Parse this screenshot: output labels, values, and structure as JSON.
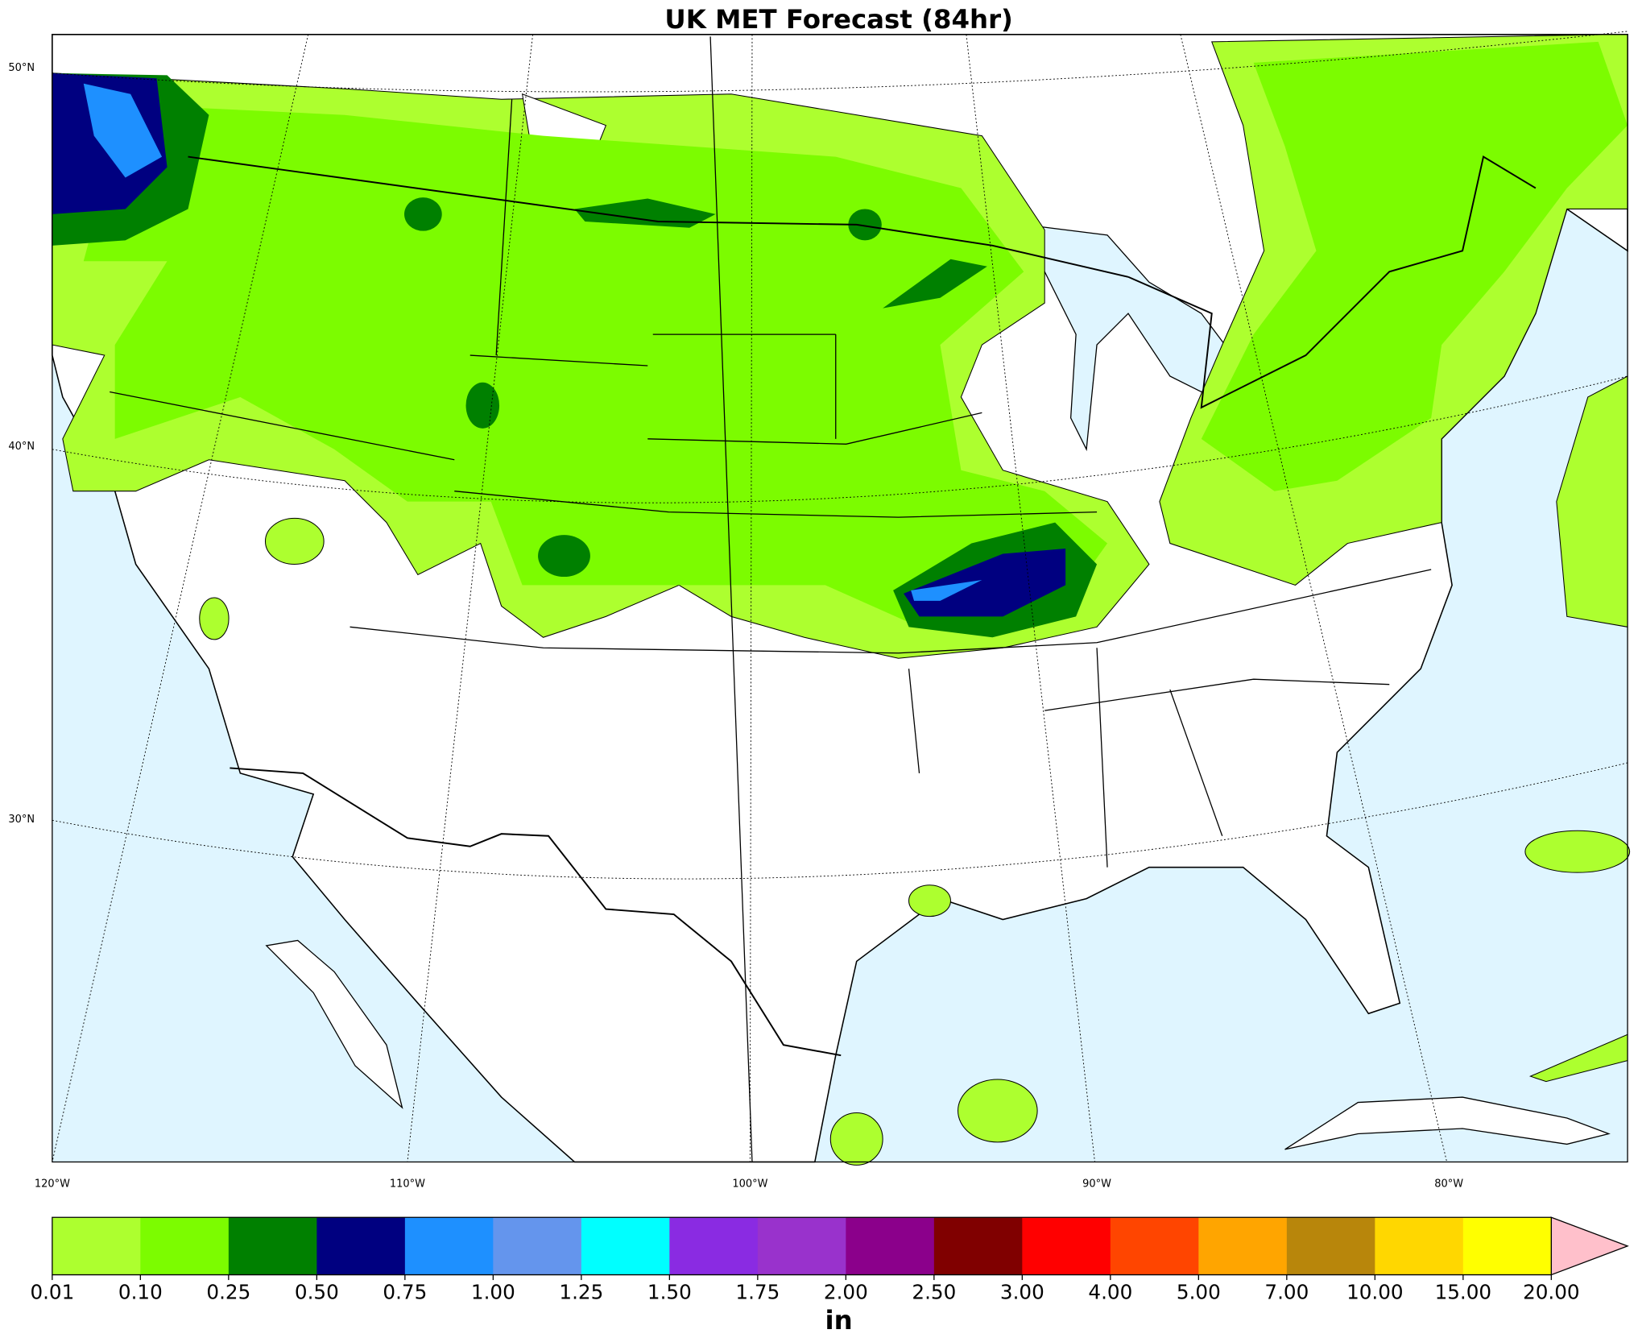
{
  "title": "UK MET Forecast (84hr)",
  "lat_labels": [
    "50°N",
    "40°N",
    "30°N"
  ],
  "lon_labels": [
    "120°W",
    "110°W",
    "100°W",
    "90°W",
    "80°W"
  ],
  "colorbar": {
    "unit": "in",
    "ticks": [
      "0.01",
      "0.10",
      "0.25",
      "0.50",
      "0.75",
      "1.00",
      "1.25",
      "1.50",
      "1.75",
      "2.00",
      "2.50",
      "3.00",
      "4.00",
      "5.00",
      "7.00",
      "10.00",
      "15.00",
      "20.00"
    ],
    "colors": [
      "#adff2f",
      "#7cfc00",
      "#008000",
      "#000080",
      "#1e90ff",
      "#6495ed",
      "#00ffff",
      "#8a2be2",
      "#9932cc",
      "#8b008b",
      "#800000",
      "#ff0000",
      "#ff4500",
      "#ffa500",
      "#b8860b",
      "#ffd700",
      "#ffff00"
    ],
    "extend_color": "#ffc0cb"
  }
}
